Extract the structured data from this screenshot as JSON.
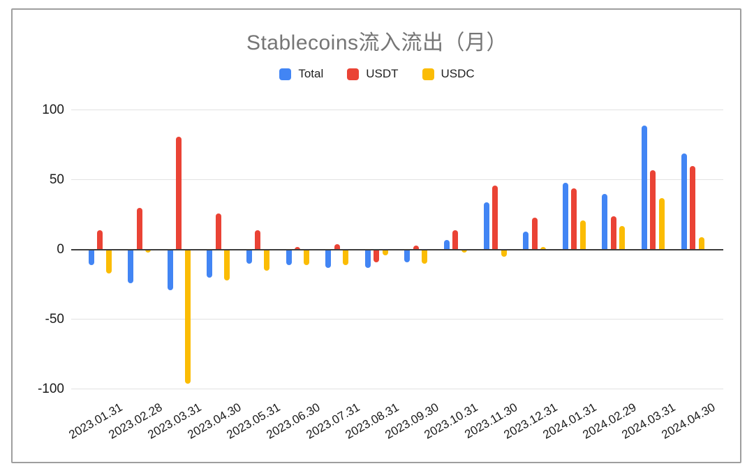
{
  "chart_data": {
    "type": "bar",
    "title": "Stablecoins流入流出（月）",
    "categories": [
      "2023.01.31",
      "2023.02.28",
      "2023.03.31",
      "2023.04.30",
      "2023.05.31",
      "2023.06.30",
      "2023.07.31",
      "2023.08.31",
      "2023.09.30",
      "2023.10.31",
      "2023.11.30",
      "2023.12.31",
      "2024.01.31",
      "2024.02.29",
      "2024.03.31",
      "2024.04.30"
    ],
    "series": [
      {
        "name": "Total",
        "color": "#4285F4",
        "values": [
          -11,
          -24,
          -29,
          -20,
          -10,
          -11,
          -13,
          -13,
          -9,
          7,
          34,
          13,
          48,
          40,
          89,
          69
        ]
      },
      {
        "name": "USDT",
        "color": "#EA4335",
        "values": [
          14,
          30,
          81,
          26,
          14,
          2,
          4,
          -9,
          3,
          14,
          46,
          23,
          44,
          24,
          57,
          60
        ]
      },
      {
        "name": "USDC",
        "color": "#FBBC04",
        "values": [
          -17,
          -2,
          -96,
          -22,
          -15,
          -11,
          -11,
          -4,
          -10,
          -2,
          -5,
          2,
          21,
          17,
          37,
          9
        ]
      }
    ],
    "ylim": [
      -100,
      100
    ],
    "yticks": [
      100,
      50,
      0,
      -50,
      -100
    ],
    "grid": true,
    "legend_position": "top"
  },
  "colors": {
    "title_text": "#757575",
    "axis_label": "#1b1b1b",
    "gridline": "#e2e2e2",
    "zero_line": "#3d3d3d",
    "frame_border": "#9e9e9e",
    "background": "#ffffff"
  }
}
